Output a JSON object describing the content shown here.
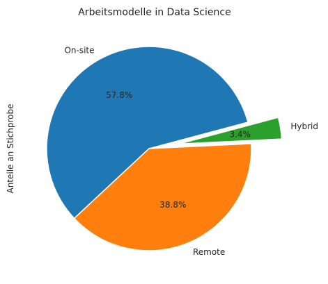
{
  "chart_data": {
    "type": "pie",
    "title": "Arbeitsmodelle in Data Science",
    "ylabel": "Anteile an Stichprobe",
    "start_angle_deg": 15,
    "direction": "counterclockwise",
    "slices": [
      {
        "label": "On-site",
        "value": 57.8,
        "pct_label": "57.8%",
        "color": "#1f77b4",
        "explode": 0
      },
      {
        "label": "Remote",
        "value": 38.8,
        "pct_label": "38.8%",
        "color": "#ff7f0e",
        "explode": 0
      },
      {
        "label": "Hybrid",
        "value": 3.4,
        "pct_label": "3.4%",
        "color": "#2ca02c",
        "explode": 0.3
      }
    ]
  }
}
